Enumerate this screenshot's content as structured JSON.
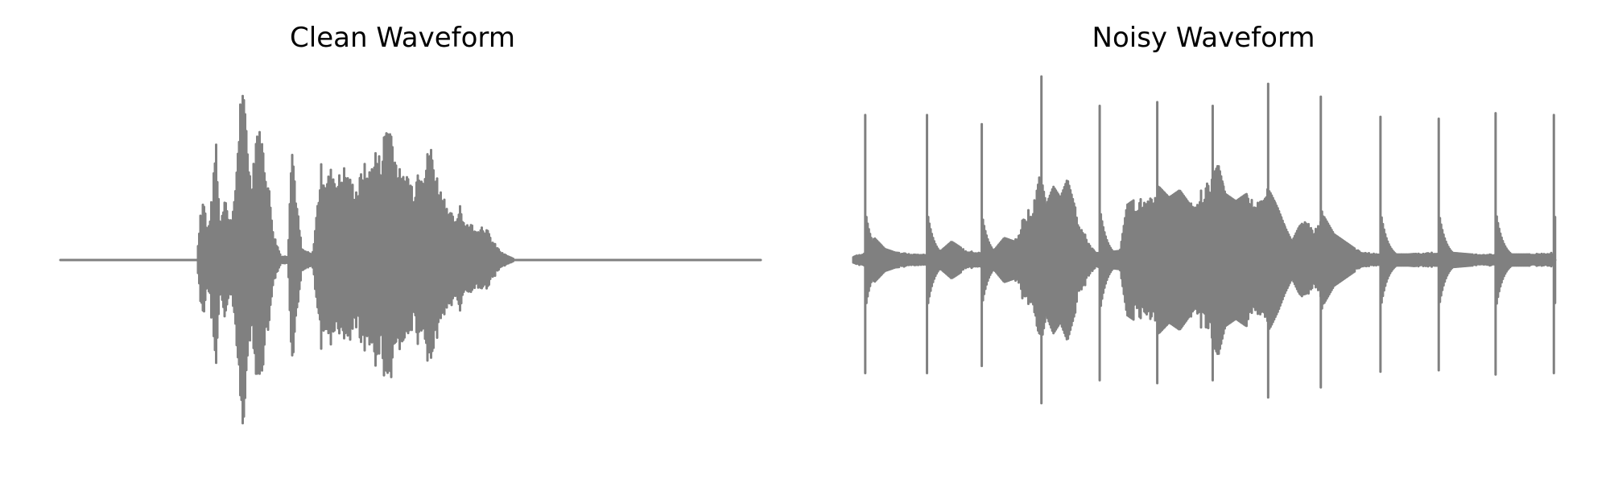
{
  "colors": {
    "background": "#ffffff",
    "waveform": "#808080",
    "title": "#000000"
  },
  "chart_data": [
    {
      "type": "waveform",
      "title": "Clean Waveform",
      "axes_visible": false,
      "grid": false,
      "ylim": [
        -1,
        1
      ],
      "envelope_points": [
        [
          0.0,
          0.0
        ],
        [
          0.195,
          0.0
        ],
        [
          0.2,
          0.28
        ],
        [
          0.205,
          0.36
        ],
        [
          0.21,
          0.14
        ],
        [
          0.218,
          0.4
        ],
        [
          0.222,
          0.72
        ],
        [
          0.228,
          0.2
        ],
        [
          0.235,
          0.4
        ],
        [
          0.24,
          0.22
        ],
        [
          0.248,
          0.3
        ],
        [
          0.258,
          0.98
        ],
        [
          0.265,
          0.82
        ],
        [
          0.272,
          0.42
        ],
        [
          0.28,
          0.76
        ],
        [
          0.288,
          0.68
        ],
        [
          0.298,
          0.4
        ],
        [
          0.305,
          0.14
        ],
        [
          0.315,
          0.02
        ],
        [
          0.325,
          0.02
        ],
        [
          0.33,
          0.72
        ],
        [
          0.338,
          0.3
        ],
        [
          0.345,
          0.06
        ],
        [
          0.36,
          0.03
        ],
        [
          0.373,
          0.55
        ],
        [
          0.38,
          0.45
        ],
        [
          0.388,
          0.52
        ],
        [
          0.395,
          0.45
        ],
        [
          0.405,
          0.52
        ],
        [
          0.415,
          0.44
        ],
        [
          0.425,
          0.4
        ],
        [
          0.432,
          0.55
        ],
        [
          0.44,
          0.48
        ],
        [
          0.45,
          0.62
        ],
        [
          0.458,
          0.56
        ],
        [
          0.465,
          0.8
        ],
        [
          0.472,
          0.76
        ],
        [
          0.48,
          0.55
        ],
        [
          0.488,
          0.46
        ],
        [
          0.495,
          0.5
        ],
        [
          0.505,
          0.4
        ],
        [
          0.512,
          0.56
        ],
        [
          0.52,
          0.52
        ],
        [
          0.528,
          0.66
        ],
        [
          0.535,
          0.52
        ],
        [
          0.542,
          0.4
        ],
        [
          0.55,
          0.34
        ],
        [
          0.558,
          0.26
        ],
        [
          0.565,
          0.2
        ],
        [
          0.57,
          0.34
        ],
        [
          0.578,
          0.2
        ],
        [
          0.585,
          0.22
        ],
        [
          0.592,
          0.16
        ],
        [
          0.6,
          0.2
        ],
        [
          0.608,
          0.18
        ],
        [
          0.615,
          0.12
        ],
        [
          0.622,
          0.08
        ],
        [
          0.63,
          0.04
        ],
        [
          0.64,
          0.02
        ],
        [
          0.65,
          0.0
        ],
        [
          1.0,
          0.0
        ]
      ]
    },
    {
      "type": "waveform",
      "title": "Noisy Waveform",
      "axes_visible": false,
      "grid": false,
      "ylim": [
        -1,
        1
      ],
      "envelope_points": [
        [
          0.0,
          0.02
        ],
        [
          0.012,
          0.03
        ],
        [
          0.018,
          0.04
        ],
        [
          0.03,
          0.12
        ],
        [
          0.045,
          0.06
        ],
        [
          0.06,
          0.04
        ],
        [
          0.09,
          0.03
        ],
        [
          0.11,
          0.03
        ],
        [
          0.125,
          0.05
        ],
        [
          0.14,
          0.1
        ],
        [
          0.16,
          0.05
        ],
        [
          0.18,
          0.04
        ],
        [
          0.2,
          0.05
        ],
        [
          0.215,
          0.12
        ],
        [
          0.23,
          0.1
        ],
        [
          0.245,
          0.26
        ],
        [
          0.255,
          0.3
        ],
        [
          0.265,
          0.5
        ],
        [
          0.275,
          0.3
        ],
        [
          0.285,
          0.4
        ],
        [
          0.295,
          0.34
        ],
        [
          0.305,
          0.44
        ],
        [
          0.315,
          0.3
        ],
        [
          0.325,
          0.18
        ],
        [
          0.335,
          0.1
        ],
        [
          0.345,
          0.04
        ],
        [
          0.36,
          0.04
        ],
        [
          0.38,
          0.05
        ],
        [
          0.39,
          0.3
        ],
        [
          0.405,
          0.34
        ],
        [
          0.42,
          0.32
        ],
        [
          0.435,
          0.4
        ],
        [
          0.45,
          0.34
        ],
        [
          0.465,
          0.38
        ],
        [
          0.48,
          0.3
        ],
        [
          0.495,
          0.4
        ],
        [
          0.51,
          0.44
        ],
        [
          0.52,
          0.52
        ],
        [
          0.53,
          0.36
        ],
        [
          0.545,
          0.32
        ],
        [
          0.56,
          0.36
        ],
        [
          0.575,
          0.3
        ],
        [
          0.585,
          0.42
        ],
        [
          0.595,
          0.36
        ],
        [
          0.605,
          0.28
        ],
        [
          0.615,
          0.18
        ],
        [
          0.625,
          0.1
        ],
        [
          0.635,
          0.18
        ],
        [
          0.645,
          0.22
        ],
        [
          0.655,
          0.16
        ],
        [
          0.67,
          0.24
        ],
        [
          0.685,
          0.14
        ],
        [
          0.7,
          0.1
        ],
        [
          0.715,
          0.06
        ],
        [
          0.73,
          0.04
        ],
        [
          0.75,
          0.03
        ],
        [
          0.79,
          0.03
        ],
        [
          0.82,
          0.04
        ],
        [
          0.85,
          0.04
        ],
        [
          0.88,
          0.03
        ],
        [
          0.92,
          0.03
        ],
        [
          0.96,
          0.03
        ],
        [
          1.0,
          0.04
        ]
      ],
      "clicks": [
        {
          "t": 0.017,
          "amp": 0.79
        },
        {
          "t": 0.105,
          "amp": 0.79
        },
        {
          "t": 0.183,
          "amp": 0.74
        },
        {
          "t": 0.268,
          "amp": 1.0
        },
        {
          "t": 0.351,
          "amp": 0.84
        },
        {
          "t": 0.433,
          "amp": 0.86
        },
        {
          "t": 0.512,
          "amp": 0.84
        },
        {
          "t": 0.591,
          "amp": 0.96
        },
        {
          "t": 0.666,
          "amp": 0.89
        },
        {
          "t": 0.751,
          "amp": 0.78
        },
        {
          "t": 0.834,
          "amp": 0.77
        },
        {
          "t": 0.915,
          "amp": 0.8
        },
        {
          "t": 0.998,
          "amp": 0.79
        }
      ]
    }
  ]
}
